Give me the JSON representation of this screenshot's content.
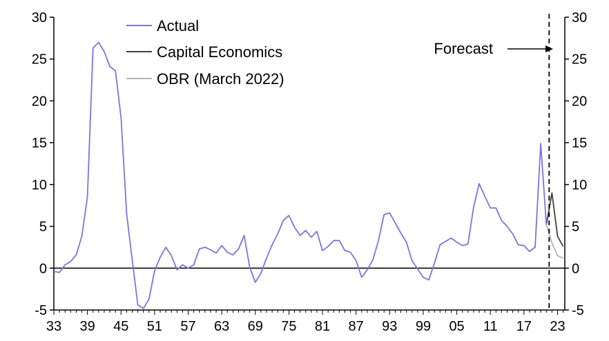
{
  "chart_data": {
    "type": "line",
    "x_ticks": [
      "33",
      "39",
      "45",
      "51",
      "57",
      "63",
      "69",
      "75",
      "81",
      "87",
      "93",
      "99",
      "05",
      "11",
      "17",
      "23"
    ],
    "x_tick_years": [
      1933,
      1939,
      1945,
      1951,
      1957,
      1963,
      1969,
      1975,
      1981,
      1987,
      1993,
      1999,
      2005,
      2011,
      2017,
      2023
    ],
    "xlim": [
      1933,
      2024.3
    ],
    "ylim": [
      -5,
      30
    ],
    "y_ticks": [
      -5,
      0,
      5,
      10,
      15,
      20,
      25,
      30
    ],
    "y_tick_labels": [
      "-5",
      "0",
      "5",
      "10",
      "15",
      "20",
      "25",
      "30"
    ],
    "legend_position": "top-left",
    "annotation": {
      "text": "Forecast",
      "divider_year": 2021.5
    },
    "series": [
      {
        "name": "Actual",
        "color": "#7b74e0",
        "x": [
          1933,
          1934,
          1935,
          1936,
          1937,
          1938,
          1939,
          1940,
          1941,
          1942,
          1943,
          1944,
          1945,
          1946,
          1947,
          1948,
          1949,
          1950,
          1951,
          1952,
          1953,
          1954,
          1955,
          1956,
          1957,
          1958,
          1959,
          1960,
          1961,
          1962,
          1963,
          1964,
          1965,
          1966,
          1967,
          1968,
          1969,
          1970,
          1971,
          1972,
          1973,
          1974,
          1975,
          1976,
          1977,
          1978,
          1979,
          1980,
          1981,
          1982,
          1983,
          1984,
          1985,
          1986,
          1987,
          1988,
          1989,
          1990,
          1991,
          1992,
          1993,
          1994,
          1995,
          1996,
          1997,
          1998,
          1999,
          2000,
          2001,
          2002,
          2003,
          2004,
          2005,
          2006,
          2007,
          2008,
          2009,
          2010,
          2011,
          2012,
          2013,
          2014,
          2015,
          2016,
          2017,
          2018,
          2019,
          2020,
          2021
        ],
        "y": [
          -0.4,
          -0.5,
          0.4,
          0.8,
          1.6,
          3.8,
          8.5,
          26.3,
          27.0,
          25.9,
          24.1,
          23.6,
          18.0,
          6.5,
          1.0,
          -4.4,
          -4.8,
          -3.7,
          -0.3,
          1.3,
          2.5,
          1.5,
          -0.2,
          0.4,
          0.0,
          0.4,
          2.3,
          2.5,
          2.2,
          1.8,
          2.7,
          1.9,
          1.6,
          2.3,
          3.9,
          0.1,
          -1.7,
          -0.6,
          1.2,
          2.8,
          4.1,
          5.7,
          6.3,
          4.9,
          3.9,
          4.5,
          3.7,
          4.4,
          2.1,
          2.6,
          3.3,
          3.3,
          2.1,
          1.9,
          0.9,
          -1.1,
          -0.2,
          1.0,
          3.3,
          6.4,
          6.6,
          5.4,
          4.2,
          3.1,
          0.9,
          -0.1,
          -1.1,
          -1.4,
          0.6,
          2.8,
          3.2,
          3.6,
          3.1,
          2.7,
          2.9,
          7.3,
          10.1,
          8.6,
          7.2,
          7.2,
          5.7,
          5.0,
          4.1,
          2.8,
          2.7,
          2.0,
          2.5,
          14.9,
          5.2
        ]
      },
      {
        "name": "Capital Economics",
        "color": "#404040",
        "x": [
          2021,
          2022,
          2023,
          2024
        ],
        "y": [
          5.2,
          9.0,
          3.8,
          2.6
        ]
      },
      {
        "name": "OBR (March 2022)",
        "color": "#b4b4b4",
        "x": [
          2021,
          2022,
          2023,
          2024
        ],
        "y": [
          5.2,
          3.0,
          1.5,
          1.2
        ]
      }
    ]
  }
}
